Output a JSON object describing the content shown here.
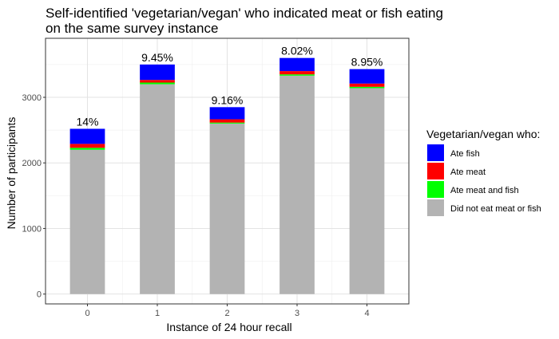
{
  "chart_data": {
    "type": "bar",
    "stacked": true,
    "title_lines": [
      "Self-identified 'vegetarian/vegan' who indicated meat or fish eating",
      "on the same survey instance"
    ],
    "xlabel": "Instance of 24 hour recall",
    "ylabel": "Number of participants",
    "categories": [
      "0",
      "1",
      "2",
      "3",
      "4"
    ],
    "ylim": [
      -150,
      3900
    ],
    "yticks": [
      0,
      1000,
      2000,
      3000
    ],
    "grid": true,
    "legend": {
      "title": "Vegetarian/vegan who:",
      "position": "right"
    },
    "series": [
      {
        "name": "Did not eat meat or fish",
        "color": "#b3b3b3",
        "values": [
          2200,
          3200,
          2600,
          3330,
          3140
        ]
      },
      {
        "name": "Ate meat and fish",
        "color": "#00ff00",
        "values": [
          30,
          25,
          15,
          20,
          20
        ]
      },
      {
        "name": "Ate meat",
        "color": "#ff0000",
        "values": [
          60,
          40,
          50,
          50,
          50
        ]
      },
      {
        "name": "Ate fish",
        "color": "#0000ff",
        "values": [
          230,
          235,
          185,
          200,
          220
        ]
      }
    ],
    "bar_labels": [
      "14%",
      "9.45%",
      "9.16%",
      "8.02%",
      "8.95%"
    ],
    "legend_order": [
      "Ate fish",
      "Ate meat",
      "Ate meat and fish",
      "Did not eat meat or fish"
    ]
  }
}
